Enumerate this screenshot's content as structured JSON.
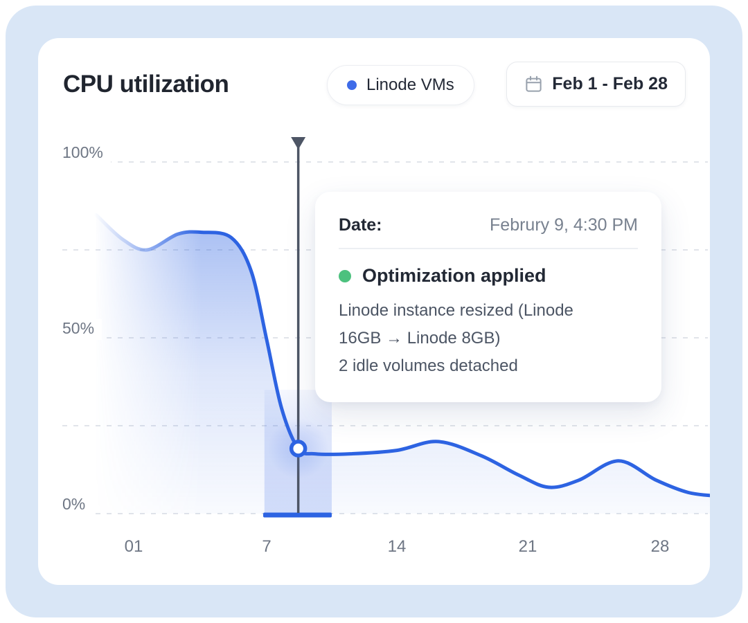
{
  "header": {
    "title": "CPU utilization",
    "legend": {
      "label": "Linode VMs"
    },
    "date_range": {
      "label": "Feb 1 - Feb 28"
    }
  },
  "tooltip": {
    "date_label": "Date:",
    "date_value": "Februry 9, 4:30 PM",
    "event_label": "Optimization applied",
    "details": [
      "Linode instance resized (Linode",
      "16GB → Linode 8GB)",
      "2 idle volumes detached"
    ]
  },
  "chart_data": {
    "type": "area",
    "title": "CPU utilization",
    "legend_position": "top-right",
    "series": [
      {
        "name": "Linode VMs",
        "points_day_pct": [
          [
            -0.7,
            85
          ],
          [
            0.5,
            78
          ],
          [
            1.6,
            75
          ],
          [
            3.0,
            79.5
          ],
          [
            4.1,
            80
          ],
          [
            5.4,
            78.5
          ],
          [
            6.3,
            69
          ],
          [
            7.0,
            49.5
          ],
          [
            7.8,
            30
          ],
          [
            8.7,
            18.5
          ],
          [
            9.6,
            17
          ],
          [
            11.5,
            17
          ],
          [
            14,
            18
          ],
          [
            16.2,
            20.5
          ],
          [
            18.5,
            16.5
          ],
          [
            20.5,
            11
          ],
          [
            22.1,
            7.5
          ],
          [
            23.7,
            9.5
          ],
          [
            25.8,
            15
          ],
          [
            27.8,
            9.5
          ],
          [
            29.5,
            6
          ],
          [
            31,
            5
          ]
        ]
      }
    ],
    "x_axis": {
      "unit": "day of February",
      "ticks": [
        {
          "day": 1,
          "label": "01"
        },
        {
          "day": 7,
          "label": "7"
        },
        {
          "day": 14,
          "label": "14"
        },
        {
          "day": 21,
          "label": "21"
        },
        {
          "day": 28,
          "label": "28"
        }
      ]
    },
    "y_axis": {
      "unit": "percent CPU",
      "range": [
        0,
        100
      ],
      "ticks": [
        {
          "pct": 100,
          "label": "100%"
        },
        {
          "pct": 50,
          "label": "50%"
        },
        {
          "pct": 0,
          "label": "0%"
        }
      ],
      "gridlines_pct": [
        100,
        75,
        50,
        25,
        0
      ],
      "grid_style": "dashed-horizontal"
    },
    "marker": {
      "day": 8.7,
      "pct": 18.5,
      "date_shown": "Februry 9, 4:30 PM",
      "event": "Optimization applied"
    },
    "highlight_band_days": [
      6.9,
      10.5
    ]
  },
  "colors": {
    "accent_blue": "#2d63e2",
    "legend_dot_blue": "#3e6be8",
    "event_green": "#4cc17e",
    "marker_line_gray": "#4d5565",
    "panel_bg": "#d9e6f6",
    "card_bg": "#ffffff",
    "grid_line": "#e1e4ea",
    "axis_text": "#6e7684"
  }
}
